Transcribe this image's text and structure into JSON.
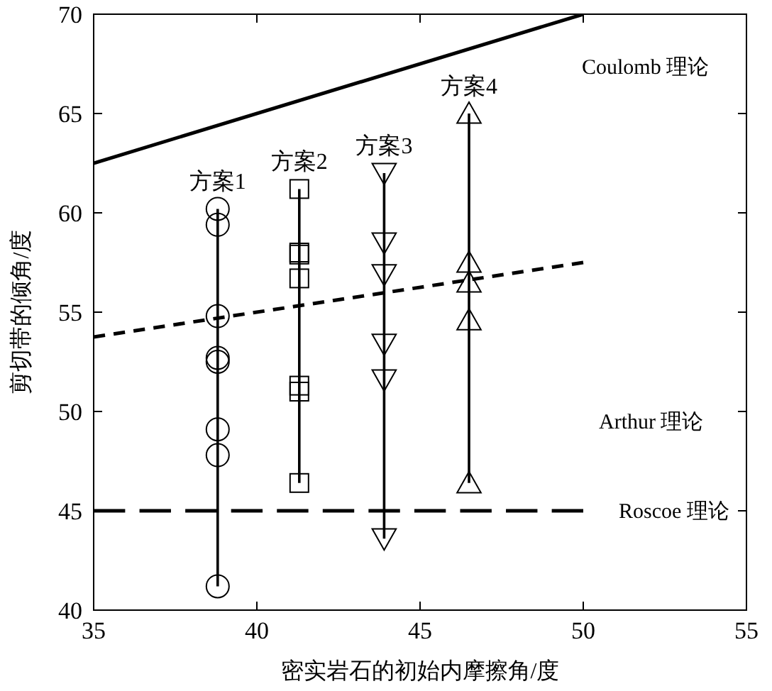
{
  "chart_data": {
    "type": "line",
    "xlabel": "密实岩石的初始内摩擦角/度",
    "ylabel": "剪切带的倾角/度",
    "xlim": [
      35,
      55
    ],
    "ylim": [
      40,
      70
    ],
    "xticks": [
      35,
      40,
      45,
      50,
      55
    ],
    "yticks": [
      40,
      45,
      50,
      55,
      60,
      65,
      70
    ],
    "grid": false,
    "series": [
      {
        "name": "方案1",
        "color": "#000000",
        "marker": "circle",
        "line_style": "solid",
        "x": [
          38.8,
          38.8,
          38.8,
          38.8,
          38.8,
          38.8,
          38.8,
          38.8
        ],
        "values": [
          60.2,
          59.4,
          54.8,
          52.7,
          52.5,
          49.1,
          47.8,
          41.2
        ]
      },
      {
        "name": "方案2",
        "color": "#000000",
        "marker": "square",
        "line_style": "solid",
        "x": [
          41.3,
          41.3,
          41.3,
          41.3,
          41.3,
          41.3,
          41.3
        ],
        "values": [
          61.2,
          58.0,
          57.9,
          56.7,
          51.3,
          51.0,
          46.4
        ]
      },
      {
        "name": "方案3",
        "color": "#000000",
        "marker": "triangle-down",
        "line_style": "solid",
        "x": [
          43.9,
          43.9,
          43.9,
          43.9,
          43.9,
          43.9
        ],
        "values": [
          62.0,
          58.5,
          56.9,
          53.4,
          51.6,
          43.6
        ]
      },
      {
        "name": "方案4",
        "color": "#000000",
        "marker": "triangle",
        "line_style": "solid",
        "x": [
          46.5,
          46.5,
          46.5,
          46.5,
          46.5
        ],
        "values": [
          65.0,
          57.5,
          56.5,
          54.6,
          46.4
        ]
      },
      {
        "color": "#000000",
        "marker": "none",
        "line_style": "solid",
        "x": [
          35,
          50
        ],
        "values": [
          62.5,
          70
        ]
      },
      {
        "color": "#000000",
        "marker": "none",
        "line_style": "dashed",
        "x": [
          35,
          50
        ],
        "values": [
          53.75,
          57.5
        ]
      },
      {
        "color": "#000000",
        "marker": "none",
        "line_style": "longdash",
        "x": [
          35,
          50
        ],
        "values": [
          45,
          45
        ]
      }
    ],
    "annotations": [
      "Coulomb 理论",
      "Arthur 理论",
      "Roscoe 理论"
    ]
  }
}
